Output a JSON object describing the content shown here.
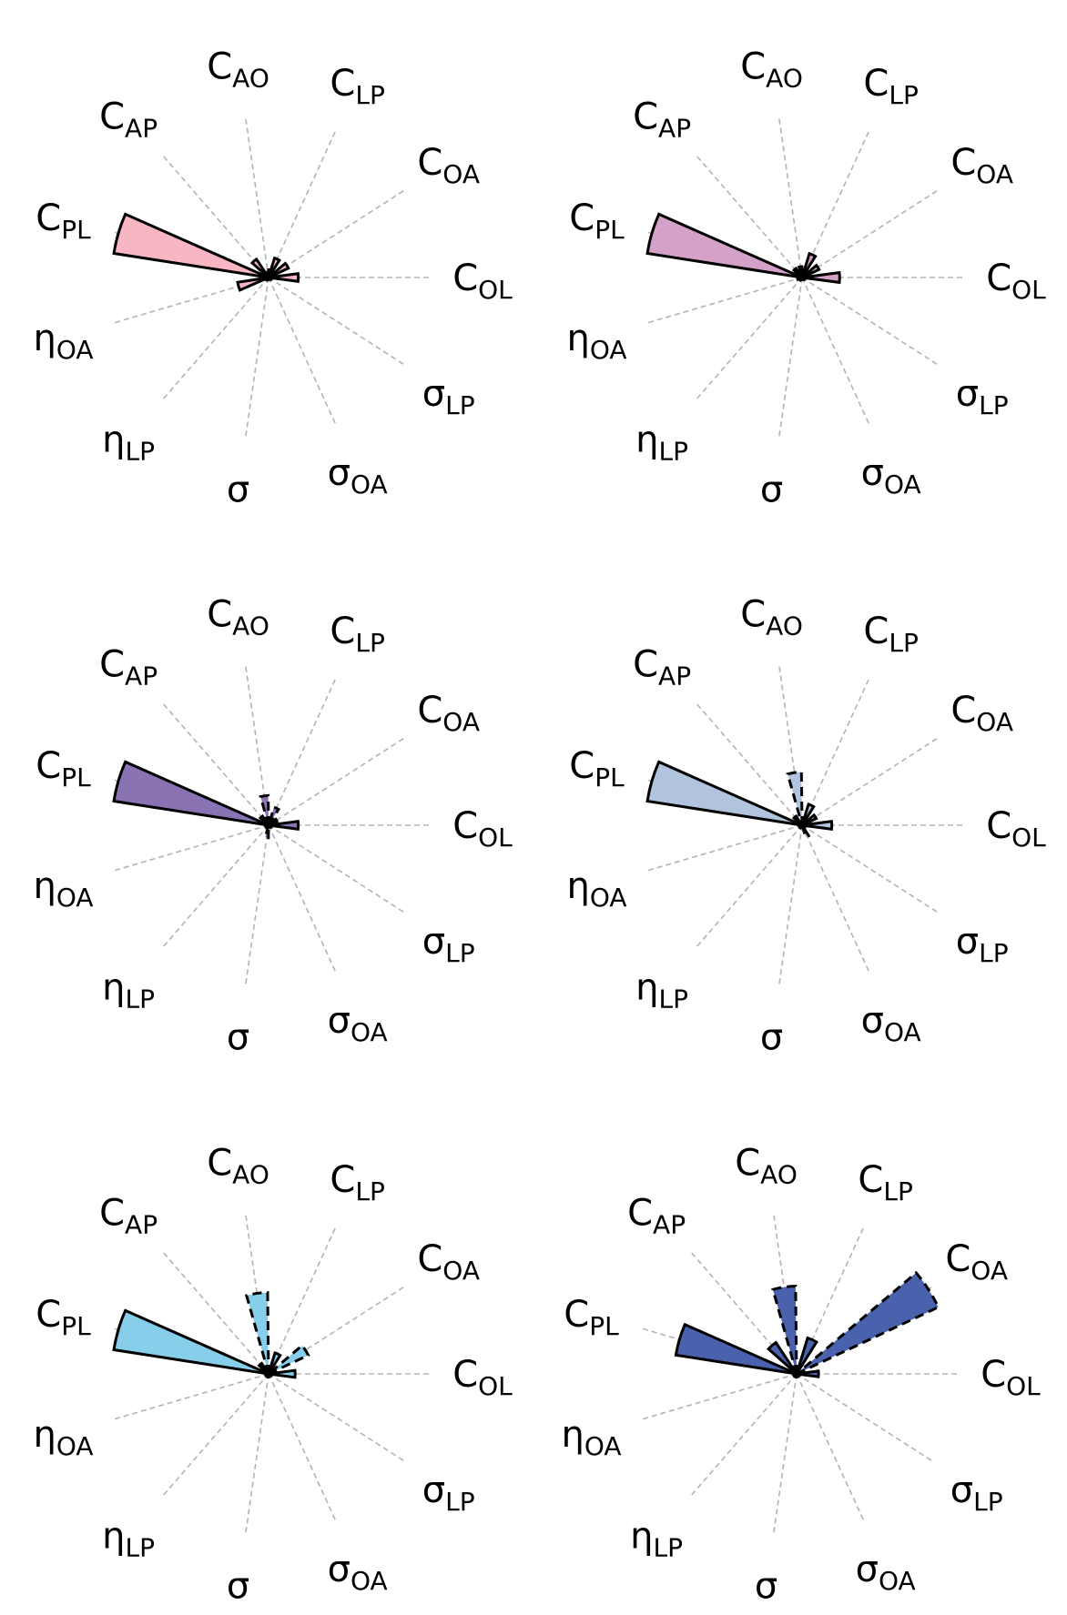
{
  "chart_data": [
    {
      "type": "polar-bar",
      "color": "#f7b6c2",
      "axes": [
        "C_OL",
        "C_OA",
        "C_LP",
        "C_AO",
        "C_AP",
        "C_PL",
        "η_OA",
        "η_LP",
        "σ",
        "σ_OA",
        "σ_LP"
      ],
      "values": [
        0.19,
        0.14,
        0.13,
        0.06,
        0.14,
        1.0,
        0.2,
        0.02,
        0.01,
        0.01,
        0.02
      ],
      "sign": [
        "+",
        "+",
        "+",
        "-",
        "+",
        "+",
        "+",
        "-",
        "-",
        "-",
        "-"
      ],
      "rmax": 1.0
    },
    {
      "type": "polar-bar",
      "color": "#d4a1c8",
      "axes": [
        "C_OL",
        "C_OA",
        "C_LP",
        "C_AO",
        "C_AP",
        "C_PL",
        "η_OA",
        "η_LP",
        "σ",
        "σ_OA",
        "σ_LP"
      ],
      "values": [
        0.24,
        0.12,
        0.16,
        0.07,
        0.07,
        1.0,
        0.03,
        0.02,
        0.01,
        0.01,
        0.02
      ],
      "sign": [
        "+",
        "+",
        "+",
        "+",
        "+",
        "+",
        "+",
        "-",
        "-",
        "-",
        "-"
      ],
      "rmax": 1.0
    },
    {
      "type": "polar-bar",
      "color": "#8a73b3",
      "axes": [
        "C_OL",
        "C_OA",
        "C_LP",
        "C_AO",
        "C_AP",
        "C_PL",
        "η_OA",
        "η_LP",
        "σ",
        "σ_OA",
        "σ_LP"
      ],
      "values": [
        0.19,
        0.06,
        0.12,
        0.19,
        0.07,
        1.0,
        0.02,
        0.02,
        0.08,
        0.01,
        0.02
      ],
      "sign": [
        "+",
        "+",
        "-",
        "-",
        "+",
        "+",
        "+",
        "-",
        "-",
        "-",
        "-"
      ],
      "rmax": 1.0
    },
    {
      "type": "polar-bar",
      "color": "#b0c4de",
      "axes": [
        "C_OL",
        "C_OA",
        "C_LP",
        "C_AO",
        "C_AP",
        "C_PL",
        "η_OA",
        "η_LP",
        "σ",
        "σ_OA",
        "σ_LP"
      ],
      "values": [
        0.19,
        0.1,
        0.14,
        0.34,
        0.07,
        1.0,
        0.02,
        0.02,
        0.01,
        0.08,
        0.02
      ],
      "sign": [
        "+",
        "+",
        "+",
        "-",
        "+",
        "+",
        "+",
        "-",
        "-",
        "-",
        "-"
      ],
      "rmax": 1.0
    },
    {
      "type": "polar-bar",
      "color": "#87ceeb",
      "axes": [
        "C_OL",
        "C_OA",
        "C_LP",
        "C_AO",
        "C_AP",
        "C_PL",
        "η_OA",
        "η_LP",
        "σ",
        "σ_OA",
        "σ_LP"
      ],
      "values": [
        0.17,
        0.28,
        0.14,
        0.52,
        0.08,
        1.0,
        0.02,
        0.02,
        0.02,
        0.01,
        0.02
      ],
      "sign": [
        "+",
        "-",
        "+",
        "-",
        "+",
        "+",
        "+",
        "-",
        "-",
        "-",
        "-"
      ],
      "rmax": 1.0
    },
    {
      "type": "polar-bar",
      "color": "#4a62ad",
      "axes": [
        "C_OL",
        "C_OA",
        "C_LP",
        "C_AO",
        "C_AP",
        "C_PL",
        "η_OA",
        "η_LP",
        "σ",
        "σ_OA",
        "σ_LP"
      ],
      "values": [
        0.14,
        1.0,
        0.24,
        0.56,
        0.24,
        0.78,
        0.02,
        0.02,
        0.02,
        0.01,
        0.02
      ],
      "sign": [
        "+",
        "-",
        "+",
        "-",
        "+",
        "+",
        "+",
        "-",
        "-",
        "-",
        "-"
      ],
      "rmax": 1.0
    }
  ]
}
